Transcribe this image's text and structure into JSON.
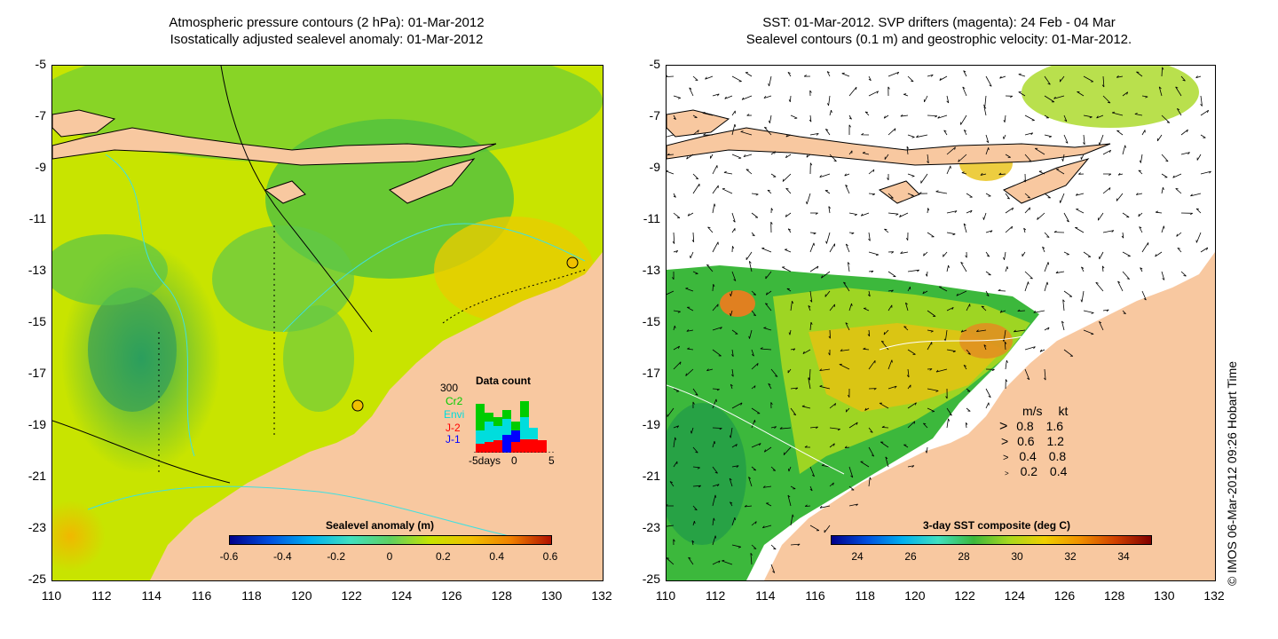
{
  "left": {
    "title_line1": "Atmospheric pressure contours (2 hPa): 01-Mar-2012",
    "title_line2": "Isostatically adjusted sealevel anomaly: 01-Mar-2012",
    "colorbar_title": "Sealevel anomaly (m)",
    "colorbar_ticks": [
      "-0.6",
      "-0.4",
      "-0.2",
      "0",
      "0.2",
      "0.4",
      "0.6"
    ],
    "colorbar_range": [
      -0.6,
      0.6
    ],
    "histogram": {
      "title": "Data count",
      "max_label": "300",
      "sources": [
        {
          "label": "Cr2",
          "color": "#00cc00"
        },
        {
          "label": "Envi",
          "color": "#00dddd"
        },
        {
          "label": "J-2",
          "color": "#ff0000"
        },
        {
          "label": "J-1",
          "color": "#0000ff"
        }
      ],
      "xticks": [
        "-5days",
        "0",
        "5"
      ]
    }
  },
  "right": {
    "title_line1": "SST: 01-Mar-2012. SVP drifters (magenta): 24 Feb - 04 Mar",
    "title_line2": "Sealevel contours (0.1 m) and geostrophic velocity: 01-Mar-2012.",
    "colorbar_title": "3-day SST composite (deg C)",
    "colorbar_ticks": [
      "24",
      "26",
      "28",
      "30",
      "32",
      "34"
    ],
    "colorbar_range": [
      23,
      35
    ],
    "velocity_legend": {
      "header_ms": "m/s",
      "header_kt": "kt",
      "rows": [
        {
          "ms": "0.8",
          "kt": "1.6"
        },
        {
          "ms": "0.6",
          "kt": "1.2"
        },
        {
          "ms": "0.4",
          "kt": "0.8"
        },
        {
          "ms": "0.2",
          "kt": "0.4"
        }
      ]
    }
  },
  "axes": {
    "lat_ticks": [
      "-5",
      "-7",
      "-9",
      "-11",
      "-13",
      "-15",
      "-17",
      "-19",
      "-21",
      "-23",
      "-25"
    ],
    "lon_ticks": [
      "110",
      "112",
      "114",
      "116",
      "118",
      "120",
      "122",
      "124",
      "126",
      "128",
      "130",
      "132"
    ],
    "lat_range": [
      -25,
      -5
    ],
    "lon_range": [
      110,
      132
    ]
  },
  "credit": "© IMOS 06-Mar-2012 09:26 Hobart Time",
  "colors": {
    "land": "#f9c8a0",
    "sla_low": "#28b050",
    "sla_mid": "#c8e800",
    "sla_high": "#f0c000",
    "sst_cool": "#3cb83c",
    "sst_warm": "#f0a020",
    "contour_cyan": "#40e0e0"
  }
}
